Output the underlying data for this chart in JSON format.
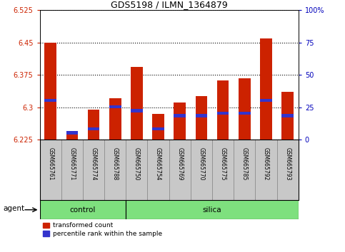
{
  "title": "GDS5198 / ILMN_1364879",
  "samples": [
    "GSM665761",
    "GSM665771",
    "GSM665774",
    "GSM665788",
    "GSM665750",
    "GSM665754",
    "GSM665769",
    "GSM665770",
    "GSM665775",
    "GSM665785",
    "GSM665792",
    "GSM665793"
  ],
  "groups": [
    "control",
    "control",
    "control",
    "control",
    "silica",
    "silica",
    "silica",
    "silica",
    "silica",
    "silica",
    "silica",
    "silica"
  ],
  "red_values": [
    6.45,
    6.238,
    6.295,
    6.322,
    6.393,
    6.285,
    6.312,
    6.326,
    6.362,
    6.368,
    6.46,
    6.336
  ],
  "blue_pct": [
    30,
    5,
    8,
    25,
    22,
    8,
    18,
    18,
    20,
    20,
    30,
    18
  ],
  "ymin": 6.225,
  "ymax": 6.525,
  "yticks": [
    6.225,
    6.3,
    6.375,
    6.45,
    6.525
  ],
  "ytick_labels": [
    "6.225",
    "6.3",
    "6.375",
    "6.45",
    "6.525"
  ],
  "right_yticks": [
    0,
    25,
    50,
    75,
    100
  ],
  "right_tick_labels": [
    "0",
    "25",
    "50",
    "75",
    "100%"
  ],
  "red_color": "#CC2200",
  "blue_color": "#3333CC",
  "bg_color": "#C8C8C8",
  "green_color": "#7EE07E",
  "left_tick_color": "#CC2200",
  "right_tick_color": "#0000BB",
  "title_fontsize": 9,
  "agent_label": "agent",
  "control_label": "control",
  "silica_label": "silica",
  "legend_red": "transformed count",
  "legend_blue": "percentile rank within the sample",
  "n_control": 4,
  "bar_width": 0.55
}
